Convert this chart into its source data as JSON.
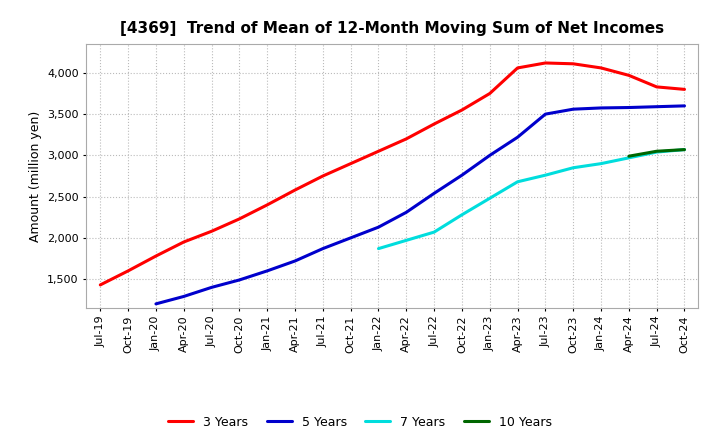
{
  "title": "[4369]  Trend of Mean of 12-Month Moving Sum of Net Incomes",
  "ylabel": "Amount (million yen)",
  "background_color": "#ffffff",
  "plot_bg_color": "#ffffff",
  "grid_color": "#bbbbbb",
  "series": {
    "3 Years": {
      "color": "#ff0000",
      "x": [
        "Jul-19",
        "Oct-19",
        "Jan-20",
        "Apr-20",
        "Jul-20",
        "Oct-20",
        "Jan-21",
        "Apr-21",
        "Jul-21",
        "Oct-21",
        "Jan-22",
        "Apr-22",
        "Jul-22",
        "Oct-22",
        "Jan-23",
        "Apr-23",
        "Jul-23",
        "Oct-23",
        "Jan-24",
        "Apr-24",
        "Jul-24",
        "Oct-24"
      ],
      "y": [
        1430,
        1600,
        1780,
        1950,
        2080,
        2230,
        2400,
        2580,
        2750,
        2900,
        3050,
        3200,
        3380,
        3550,
        3750,
        4060,
        4120,
        4110,
        4060,
        3970,
        3830,
        3800
      ]
    },
    "5 Years": {
      "color": "#0000cc",
      "x": [
        "Jan-20",
        "Apr-20",
        "Jul-20",
        "Oct-20",
        "Jan-21",
        "Apr-21",
        "Jul-21",
        "Oct-21",
        "Jan-22",
        "Apr-22",
        "Jul-22",
        "Oct-22",
        "Jan-23",
        "Apr-23",
        "Jul-23",
        "Oct-23",
        "Jan-24",
        "Apr-24",
        "Jul-24",
        "Oct-24"
      ],
      "y": [
        1200,
        1290,
        1400,
        1490,
        1600,
        1720,
        1870,
        2000,
        2130,
        2310,
        2540,
        2760,
        3000,
        3220,
        3500,
        3560,
        3575,
        3580,
        3590,
        3600
      ]
    },
    "7 Years": {
      "color": "#00dddd",
      "x": [
        "Jan-22",
        "Apr-22",
        "Jul-22",
        "Oct-22",
        "Jan-23",
        "Apr-23",
        "Jul-23",
        "Oct-23",
        "Jan-24",
        "Apr-24",
        "Jul-24",
        "Oct-24"
      ],
      "y": [
        1870,
        1970,
        2070,
        2280,
        2480,
        2680,
        2760,
        2850,
        2900,
        2970,
        3040,
        3070
      ]
    },
    "10 Years": {
      "color": "#006600",
      "x": [
        "Apr-24",
        "Jul-24",
        "Oct-24"
      ],
      "y": [
        2990,
        3050,
        3070
      ]
    }
  },
  "ylim": [
    1150,
    4350
  ],
  "yticks": [
    1500,
    2000,
    2500,
    3000,
    3500,
    4000
  ],
  "xticks": [
    "Jul-19",
    "Oct-19",
    "Jan-20",
    "Apr-20",
    "Jul-20",
    "Oct-20",
    "Jan-21",
    "Apr-21",
    "Jul-21",
    "Oct-21",
    "Jan-22",
    "Apr-22",
    "Jul-22",
    "Oct-22",
    "Jan-23",
    "Apr-23",
    "Jul-23",
    "Oct-23",
    "Jan-24",
    "Apr-24",
    "Jul-24",
    "Oct-24"
  ],
  "linewidth": 2.2,
  "legend_order": [
    "3 Years",
    "5 Years",
    "7 Years",
    "10 Years"
  ]
}
